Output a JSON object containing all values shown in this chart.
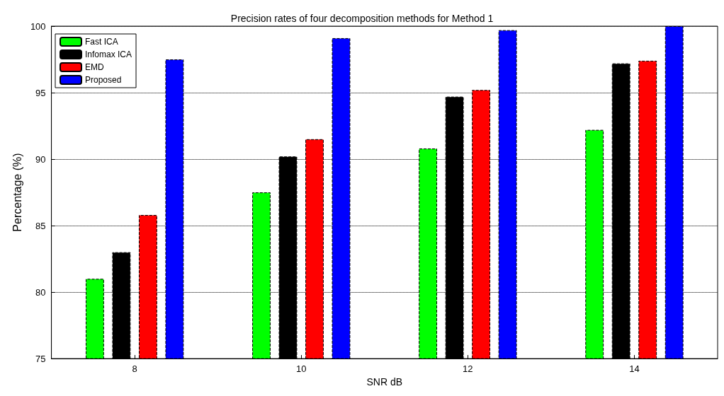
{
  "chart_data": {
    "type": "bar",
    "title": "Precision rates of four decomposition methods for Method 1",
    "xlabel": "SNR dB",
    "ylabel": "Percentage (%)",
    "categories": [
      "8",
      "10",
      "12",
      "14"
    ],
    "series": [
      {
        "name": "Fast ICA",
        "color": "#00ff00",
        "values": [
          81.0,
          87.5,
          90.8,
          92.2
        ]
      },
      {
        "name": "Infomax ICA",
        "color": "#000000",
        "values": [
          83.0,
          90.2,
          94.7,
          97.2
        ]
      },
      {
        "name": "EMD",
        "color": "#ff0000",
        "values": [
          85.8,
          91.5,
          95.2,
          97.4
        ]
      },
      {
        "name": "Proposed",
        "color": "#0000ff",
        "values": [
          97.5,
          99.1,
          99.7,
          100
        ]
      }
    ],
    "ylim": [
      75,
      100
    ],
    "yticks": [
      75,
      80,
      85,
      90,
      95,
      100
    ],
    "grid": "y",
    "legend": "top left"
  }
}
